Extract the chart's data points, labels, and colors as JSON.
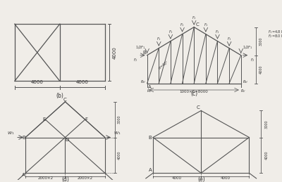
{
  "fig_bg": "#f0ede8",
  "lc": "#555555",
  "tc": "#333333",
  "fs": 5.0,
  "label_b": "(b)",
  "label_c": "(c)",
  "label_d": "(d)",
  "label_e": "(e)"
}
